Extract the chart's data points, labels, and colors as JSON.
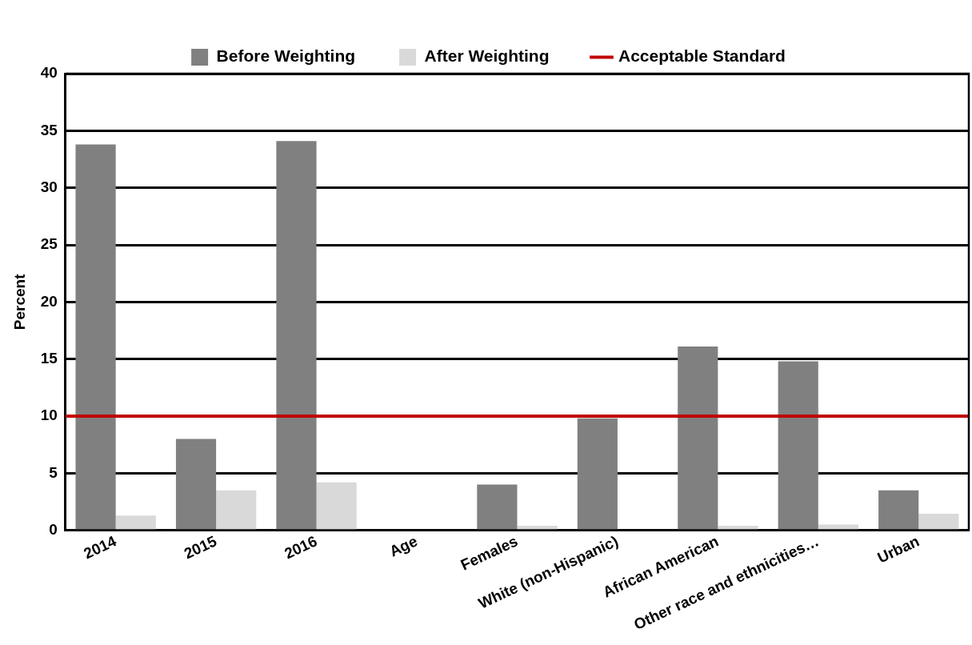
{
  "chart_data": {
    "type": "bar",
    "ylabel": "Percent",
    "categories": [
      "2014",
      "2015",
      "2016",
      "Age",
      "Females",
      "White (non-Hispanic)",
      "African American",
      "Other race and ethnicities…",
      "Urban"
    ],
    "series": [
      {
        "name": "Before Weighting",
        "color": "#808080",
        "values": [
          33.8,
          8.0,
          34.1,
          0,
          4.0,
          9.8,
          16.1,
          14.8,
          3.5
        ]
      },
      {
        "name": "After Weighting",
        "color": "#d9d9d9",
        "values": [
          1.3,
          3.5,
          4.2,
          0,
          0.4,
          0,
          0.4,
          0.5,
          1.45
        ]
      }
    ],
    "ref_lines": [
      {
        "axis": "y",
        "value": 10,
        "label": "Acceptable Standard",
        "color": "#c00000"
      }
    ],
    "ylim": [
      0,
      40
    ],
    "yticks": [
      0,
      5,
      10,
      15,
      20,
      25,
      30,
      35,
      40
    ],
    "grid": "y",
    "legend": "top"
  }
}
